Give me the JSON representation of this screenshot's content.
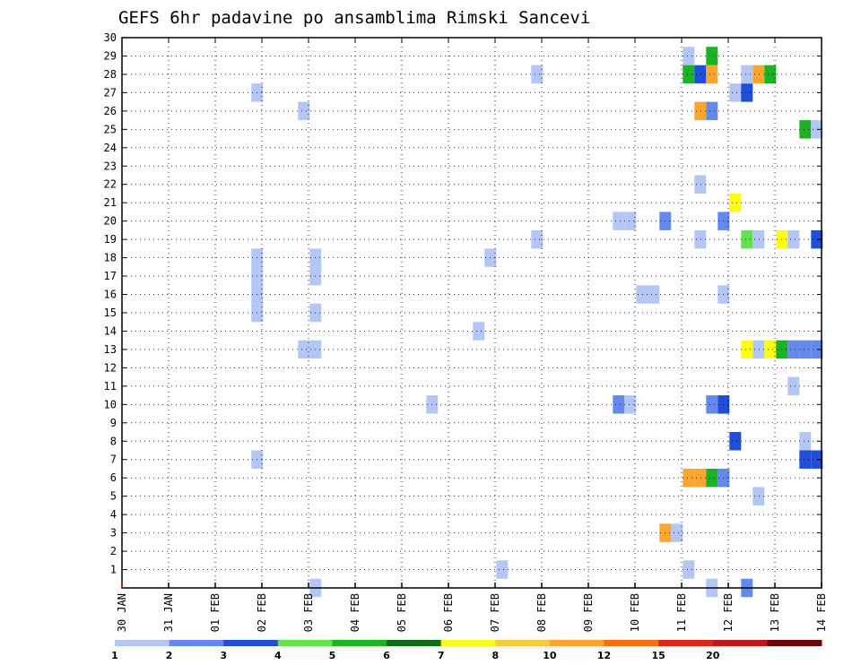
{
  "chart_data": {
    "type": "heatmap",
    "title": "GEFS 6hr padavine po ansamblima Rimski Sancevi",
    "x_tick_labels": [
      "30 JAN",
      "31 JAN",
      "01 FEB",
      "02 FEB",
      "03 FEB",
      "04 FEB",
      "05 FEB",
      "06 FEB",
      "07 FEB",
      "08 FEB",
      "09 FEB",
      "10 FEB",
      "11 FEB",
      "12 FEB",
      "13 FEB",
      "14 FEB"
    ],
    "y_tick_labels": [
      "1",
      "2",
      "3",
      "4",
      "5",
      "6",
      "7",
      "8",
      "9",
      "10",
      "11",
      "12",
      "13",
      "14",
      "15",
      "16",
      "17",
      "18",
      "19",
      "20",
      "21",
      "22",
      "23",
      "24",
      "25",
      "26",
      "27",
      "28",
      "29",
      "30"
    ],
    "xlim_days": [
      0,
      15
    ],
    "ylim_members": [
      0,
      30
    ],
    "grid": true,
    "colorbar": {
      "tick_labels": [
        "1",
        "2",
        "3",
        "4",
        "5",
        "6",
        "7",
        "8",
        "10",
        "12",
        "15",
        "20"
      ],
      "colors": [
        "#b4c6f6",
        "#6489ec",
        "#1f4fd6",
        "#66e051",
        "#1db222",
        "#0d6d13",
        "#fcfc16",
        "#fcc83c",
        "#fca52f",
        "#f46d19",
        "#dc2a16",
        "#bb1b14",
        "#6c0708"
      ]
    },
    "legend": "bottom",
    "cells": [
      {
        "t": 2.9,
        "m": 27,
        "c": 0
      },
      {
        "t": 2.9,
        "m": 7,
        "c": 0
      },
      {
        "t": 2.9,
        "m": 18,
        "c": 0
      },
      {
        "t": 2.9,
        "m": 17,
        "c": 0
      },
      {
        "t": 2.9,
        "m": 16,
        "c": 0
      },
      {
        "t": 2.9,
        "m": 15,
        "c": 0
      },
      {
        "t": 3.9,
        "m": 26,
        "c": 0
      },
      {
        "t": 3.9,
        "m": 13,
        "c": 0
      },
      {
        "t": 4.15,
        "m": 18,
        "c": 0
      },
      {
        "t": 4.15,
        "m": 17,
        "c": 0
      },
      {
        "t": 4.15,
        "m": 15,
        "c": 0
      },
      {
        "t": 4.15,
        "m": 13,
        "c": 0
      },
      {
        "t": 4.15,
        "m": 0,
        "c": 0
      },
      {
        "t": 6.65,
        "m": 10,
        "c": 0
      },
      {
        "t": 7.65,
        "m": 14,
        "c": 0
      },
      {
        "t": 7.9,
        "m": 18,
        "c": 0
      },
      {
        "t": 8.15,
        "m": 1,
        "c": 0
      },
      {
        "t": 8.9,
        "m": 28,
        "c": 0
      },
      {
        "t": 8.9,
        "m": 19,
        "c": 0
      },
      {
        "t": 10.65,
        "m": 20,
        "c": 0
      },
      {
        "t": 10.9,
        "m": 20,
        "c": 0
      },
      {
        "t": 10.65,
        "m": 10,
        "c": 1
      },
      {
        "t": 10.9,
        "m": 10,
        "c": 0
      },
      {
        "t": 11.15,
        "m": 16,
        "c": 0
      },
      {
        "t": 11.4,
        "m": 16,
        "c": 0
      },
      {
        "t": 11.65,
        "m": 20,
        "c": 1
      },
      {
        "t": 11.65,
        "m": 3,
        "c": 8
      },
      {
        "t": 11.9,
        "m": 3,
        "c": 0
      },
      {
        "t": 12.15,
        "m": 29,
        "c": 0
      },
      {
        "t": 12.15,
        "m": 1,
        "c": 0
      },
      {
        "t": 12.15,
        "m": 28,
        "c": 4
      },
      {
        "t": 12.4,
        "m": 28,
        "c": 2
      },
      {
        "t": 12.65,
        "m": 28,
        "c": 8
      },
      {
        "t": 12.65,
        "m": 29,
        "c": 4
      },
      {
        "t": 12.4,
        "m": 26,
        "c": 8
      },
      {
        "t": 12.65,
        "m": 26,
        "c": 1
      },
      {
        "t": 12.4,
        "m": 22,
        "c": 0
      },
      {
        "t": 12.4,
        "m": 19,
        "c": 0
      },
      {
        "t": 12.15,
        "m": 6,
        "c": 8
      },
      {
        "t": 12.4,
        "m": 6,
        "c": 8
      },
      {
        "t": 12.65,
        "m": 6,
        "c": 4
      },
      {
        "t": 12.9,
        "m": 6,
        "c": 1
      },
      {
        "t": 12.65,
        "m": 10,
        "c": 1
      },
      {
        "t": 12.9,
        "m": 10,
        "c": 2
      },
      {
        "t": 12.65,
        "m": 0,
        "c": 0
      },
      {
        "t": 12.9,
        "m": 20,
        "c": 1
      },
      {
        "t": 12.9,
        "m": 16,
        "c": 0
      },
      {
        "t": 13.15,
        "m": 27,
        "c": 0
      },
      {
        "t": 13.4,
        "m": 27,
        "c": 2
      },
      {
        "t": 13.15,
        "m": 21,
        "c": 6
      },
      {
        "t": 13.15,
        "m": 8,
        "c": 2
      },
      {
        "t": 13.4,
        "m": 28,
        "c": 0
      },
      {
        "t": 13.65,
        "m": 28,
        "c": 8
      },
      {
        "t": 13.9,
        "m": 28,
        "c": 4
      },
      {
        "t": 13.4,
        "m": 19,
        "c": 3
      },
      {
        "t": 13.65,
        "m": 19,
        "c": 0
      },
      {
        "t": 13.4,
        "m": 13,
        "c": 6
      },
      {
        "t": 13.65,
        "m": 13,
        "c": 0
      },
      {
        "t": 13.9,
        "m": 13,
        "c": 6
      },
      {
        "t": 14.15,
        "m": 13,
        "c": 4
      },
      {
        "t": 14.4,
        "m": 13,
        "c": 1
      },
      {
        "t": 14.65,
        "m": 13,
        "c": 1
      },
      {
        "t": 14.9,
        "m": 13,
        "c": 1
      },
      {
        "t": 13.4,
        "m": 0,
        "c": 1
      },
      {
        "t": 13.65,
        "m": 5,
        "c": 0
      },
      {
        "t": 14.15,
        "m": 19,
        "c": 6
      },
      {
        "t": 14.4,
        "m": 19,
        "c": 0
      },
      {
        "t": 14.9,
        "m": 19,
        "c": 2
      },
      {
        "t": 14.4,
        "m": 11,
        "c": 0
      },
      {
        "t": 14.65,
        "m": 25,
        "c": 4
      },
      {
        "t": 14.9,
        "m": 25,
        "c": 0
      },
      {
        "t": 14.65,
        "m": 8,
        "c": 0
      },
      {
        "t": 14.65,
        "m": 7,
        "c": 2
      },
      {
        "t": 14.9,
        "m": 7,
        "c": 2
      }
    ]
  }
}
